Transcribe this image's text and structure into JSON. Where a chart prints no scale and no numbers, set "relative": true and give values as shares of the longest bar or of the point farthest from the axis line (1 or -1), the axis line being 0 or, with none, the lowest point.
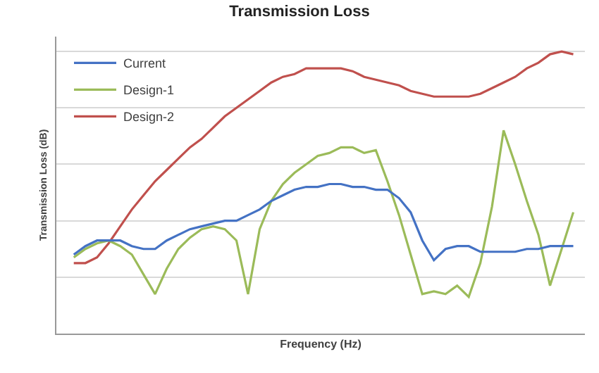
{
  "chart_data": {
    "type": "line",
    "title": "Transmission Loss",
    "xlabel": "Frequency (Hz)",
    "ylabel": "Transmission Loss (dB)",
    "relative": true,
    "grid": "y",
    "legend": "top left",
    "marker": "none",
    "line_style": "solid",
    "categories": [
      null,
      null,
      null,
      null,
      null,
      null,
      null,
      null,
      null,
      null,
      null,
      null,
      null,
      null,
      null,
      null,
      null,
      null,
      null,
      null,
      null,
      null,
      null,
      null,
      null,
      null,
      null,
      null,
      null,
      null,
      null,
      null,
      null,
      null,
      null,
      null,
      null,
      null,
      null,
      null,
      null,
      null,
      null,
      null
    ],
    "series": [
      {
        "name": "Current",
        "color": "#4472c4",
        "values": [
          0.28,
          0.31,
          0.33,
          0.33,
          0.33,
          0.31,
          0.3,
          0.3,
          0.33,
          0.35,
          0.37,
          0.38,
          0.39,
          0.4,
          0.4,
          0.42,
          0.44,
          0.47,
          0.49,
          0.51,
          0.52,
          0.52,
          0.53,
          0.53,
          0.52,
          0.52,
          0.51,
          0.51,
          0.48,
          0.43,
          0.33,
          0.26,
          0.3,
          0.31,
          0.31,
          0.29,
          0.29,
          0.29,
          0.29,
          0.3,
          0.3,
          0.31,
          0.31,
          0.31
        ]
      },
      {
        "name": "Design-1",
        "color": "#9bbb59",
        "values": [
          0.27,
          0.3,
          0.32,
          0.33,
          0.31,
          0.28,
          0.21,
          0.14,
          0.23,
          0.3,
          0.34,
          0.37,
          0.38,
          0.37,
          0.33,
          0.14,
          0.37,
          0.47,
          0.53,
          0.57,
          0.6,
          0.63,
          0.64,
          0.66,
          0.66,
          0.64,
          0.65,
          0.54,
          0.42,
          0.28,
          0.14,
          0.15,
          0.14,
          0.17,
          0.13,
          0.25,
          0.45,
          0.72,
          0.6,
          0.47,
          0.35,
          0.17,
          0.3,
          0.43
        ]
      },
      {
        "name": "Design-2",
        "color": "#c0504d",
        "values": [
          0.25,
          0.25,
          0.27,
          0.32,
          0.38,
          0.44,
          0.49,
          0.54,
          0.58,
          0.62,
          0.66,
          0.69,
          0.73,
          0.77,
          0.8,
          0.83,
          0.86,
          0.89,
          0.91,
          0.92,
          0.94,
          0.94,
          0.94,
          0.94,
          0.93,
          0.91,
          0.9,
          0.89,
          0.88,
          0.86,
          0.85,
          0.84,
          0.84,
          0.84,
          0.84,
          0.85,
          0.87,
          0.89,
          0.91,
          0.94,
          0.96,
          0.99,
          1,
          0.99
        ]
      }
    ]
  }
}
